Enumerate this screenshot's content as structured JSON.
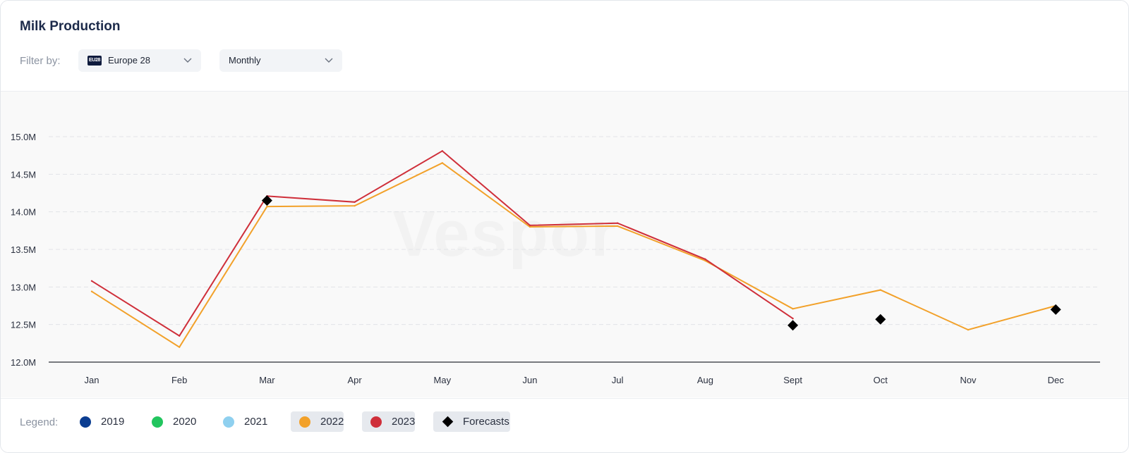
{
  "header": {
    "title": "Milk Production",
    "filter_label": "Filter by:",
    "region": {
      "flag_text": "EU28",
      "value": "Europe 28"
    },
    "period": {
      "value": "Monthly"
    }
  },
  "watermark": "Vespor",
  "legend": {
    "label": "Legend:",
    "items": [
      {
        "label": "2019",
        "color": "#0b3d91",
        "active": false,
        "kind": "dot"
      },
      {
        "label": "2020",
        "color": "#22c55e",
        "active": false,
        "kind": "dot"
      },
      {
        "label": "2021",
        "color": "#8fd0ef",
        "active": false,
        "kind": "dot"
      },
      {
        "label": "2022",
        "color": "#f2a12a",
        "active": true,
        "kind": "dot"
      },
      {
        "label": "2023",
        "color": "#cf2f3a",
        "active": true,
        "kind": "dot"
      },
      {
        "label": "Forecasts",
        "color": "#000000",
        "active": true,
        "kind": "diamond"
      }
    ]
  },
  "chart_data": {
    "type": "line",
    "title": "Milk Production",
    "x": [
      "Jan",
      "Feb",
      "Mar",
      "Apr",
      "May",
      "Jun",
      "Jul",
      "Aug",
      "Sept",
      "Oct",
      "Nov",
      "Dec"
    ],
    "ylim": [
      12.0,
      15.0
    ],
    "y_ticks": [
      12.0,
      12.5,
      13.0,
      13.5,
      14.0,
      14.5,
      15.0
    ],
    "y_tick_labels": [
      "12.0M",
      "12.5M",
      "13.0M",
      "13.5M",
      "14.0M",
      "14.5M",
      "15.0M"
    ],
    "grid": true,
    "series": [
      {
        "name": "2022",
        "color": "#f2a12a",
        "values": [
          12.94,
          12.2,
          14.07,
          14.08,
          14.65,
          13.8,
          13.81,
          13.35,
          12.71,
          12.96,
          12.43,
          12.75
        ]
      },
      {
        "name": "2023",
        "color": "#cf2f3a",
        "values": [
          13.08,
          12.35,
          14.21,
          14.13,
          14.81,
          13.82,
          13.85,
          13.37,
          12.58,
          null,
          null,
          null
        ]
      },
      {
        "name": "Forecasts",
        "color": "#000000",
        "marker": "diamond",
        "points": [
          {
            "x": "Mar",
            "y": 14.15
          },
          {
            "x": "Sept",
            "y": 12.49
          },
          {
            "x": "Oct",
            "y": 12.57
          },
          {
            "x": "Dec",
            "y": 12.7
          }
        ]
      }
    ]
  }
}
